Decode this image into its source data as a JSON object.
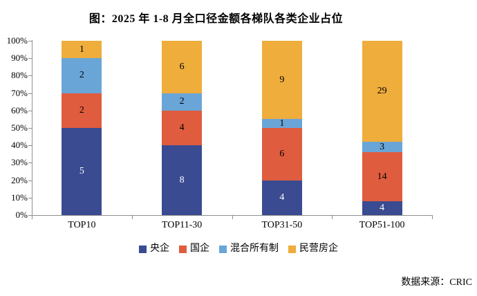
{
  "title": "图：2025 年 1-8 月全口径金额各梯队各类企业占位",
  "source": "数据来源：CRIC",
  "colors": {
    "axis": "#8e8e8e",
    "background": "#ffffff",
    "text": "#000000"
  },
  "chart_data": {
    "type": "bar",
    "stacked": true,
    "percent_stacked": true,
    "title": "图：2025 年 1-8 月全口径金额各梯队各类企业占位",
    "categories": [
      "TOP10",
      "TOP11-30",
      "TOP31-50",
      "TOP51-100"
    ],
    "series": [
      {
        "name": "央企",
        "color": "#3a4b91",
        "label_color": "#ffffff",
        "values": [
          5,
          8,
          4,
          4
        ],
        "percents": [
          50,
          40,
          20,
          8
        ]
      },
      {
        "name": "国企",
        "color": "#e05c3e",
        "label_color": "#000000",
        "values": [
          2,
          4,
          6,
          14
        ],
        "percents": [
          20,
          20,
          30,
          28
        ]
      },
      {
        "name": "混合所有制",
        "color": "#6aa5d8",
        "label_color": "#000000",
        "values": [
          2,
          2,
          1,
          3
        ],
        "percents": [
          20,
          10,
          5,
          6
        ]
      },
      {
        "name": "民营房企",
        "color": "#efad3c",
        "label_color": "#000000",
        "values": [
          1,
          6,
          9,
          29
        ],
        "percents": [
          10,
          30,
          45,
          58
        ]
      }
    ],
    "xlabel": "",
    "ylabel": "",
    "ylim": [
      0,
      100
    ],
    "y_tick_step": 10,
    "y_tick_labels": [
      "0%",
      "10%",
      "20%",
      "30%",
      "40%",
      "50%",
      "60%",
      "70%",
      "80%",
      "90%",
      "100%"
    ],
    "grid": false,
    "legend_position": "bottom",
    "legend_entries": [
      "央企",
      "国企",
      "混合所有制",
      "民营房企"
    ]
  }
}
